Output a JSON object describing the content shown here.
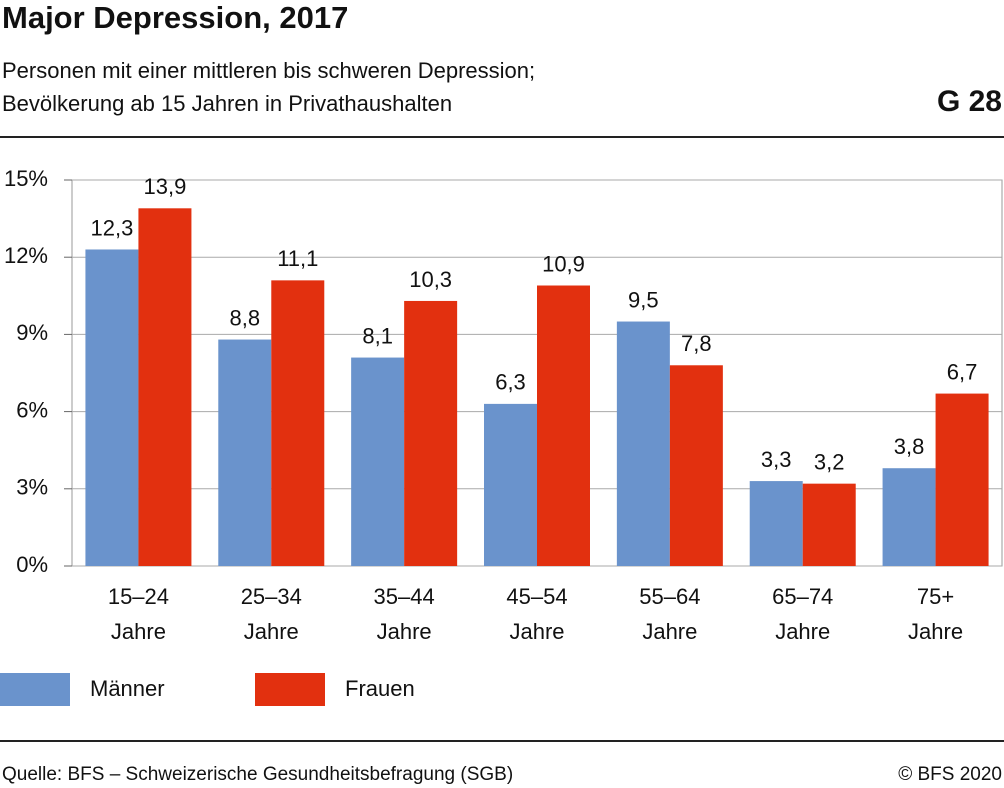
{
  "chart_data": {
    "type": "bar",
    "title": "Major Depression, 2017",
    "subtitle": [
      "Personen mit einer mittleren bis schweren Depression;",
      "Bevölkerung ab 15 Jahren in Privathaushalten"
    ],
    "graphic_id": "G 28",
    "categories": [
      [
        "15–24",
        "Jahre"
      ],
      [
        "25–34",
        "Jahre"
      ],
      [
        "35–44",
        "Jahre"
      ],
      [
        "45–54",
        "Jahre"
      ],
      [
        "55–64",
        "Jahre"
      ],
      [
        "65–74",
        "Jahre"
      ],
      [
        "75+",
        "Jahre"
      ]
    ],
    "series": [
      {
        "name": "Männer",
        "color": "#6a93cc",
        "values": [
          12.3,
          8.8,
          8.1,
          6.3,
          9.5,
          3.3,
          3.8
        ],
        "value_labels": [
          "12,3",
          "8,8",
          "8,1",
          "6,3",
          "9,5",
          "3,3",
          "3,8"
        ]
      },
      {
        "name": "Frauen",
        "color": "#e2300f",
        "values": [
          13.9,
          11.1,
          10.3,
          10.9,
          7.8,
          3.2,
          6.7
        ],
        "value_labels": [
          "13,9",
          "11,1",
          "10,3",
          "10,9",
          "7,8",
          "3,2",
          "6,7"
        ]
      }
    ],
    "ylim": [
      0,
      15
    ],
    "yticks": [
      {
        "value": 0,
        "label": "0%"
      },
      {
        "value": 3,
        "label": "3%"
      },
      {
        "value": 6,
        "label": "6%"
      },
      {
        "value": 9,
        "label": "9%"
      },
      {
        "value": 12,
        "label": "12%"
      },
      {
        "value": 15,
        "label": "15%"
      }
    ],
    "grid": true,
    "source": "Quelle: BFS – Schweizerische Gesundheitsbefragung (SGB)",
    "copyright": "© BFS 2020"
  }
}
